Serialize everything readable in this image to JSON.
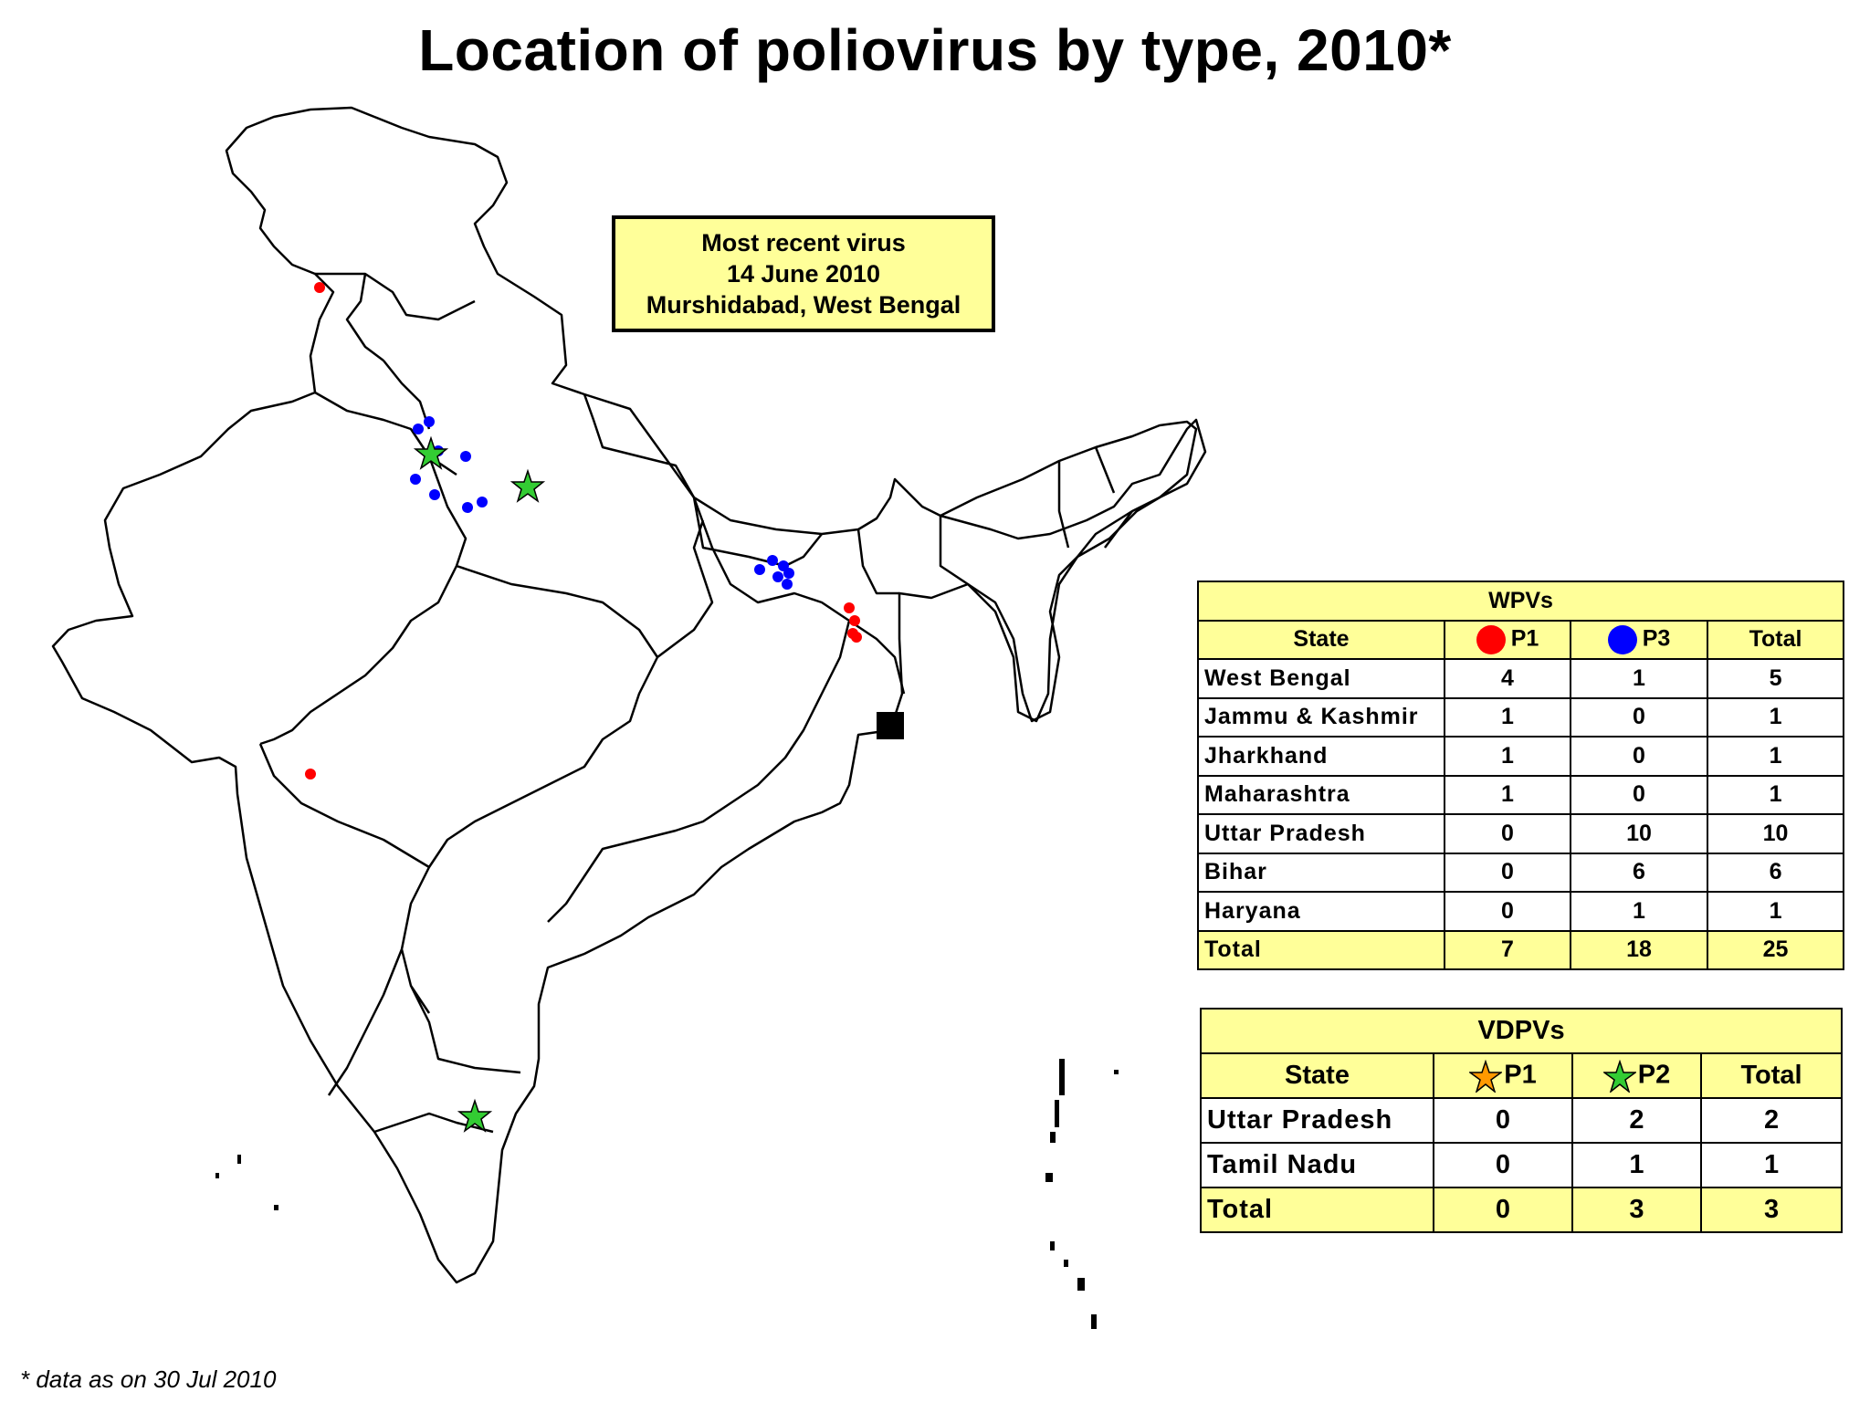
{
  "title": "Location of poliovirus by type, 2010*",
  "recent_virus": {
    "line1": "Most recent virus",
    "line2": "14 June 2010",
    "line3": "Murshidabad, West Bengal"
  },
  "wpv_table": {
    "title": "WPVs",
    "col_state": "State",
    "col_p1": "P1",
    "col_p3": "P3",
    "col_total": "Total",
    "p1_marker_color": "#ff0000",
    "p3_marker_color": "#0000ff",
    "rows": [
      {
        "state": "West Bengal",
        "p1": "4",
        "p3": "1",
        "total": "5"
      },
      {
        "state": "Jammu & Kashmir",
        "p1": "1",
        "p3": "0",
        "total": "1"
      },
      {
        "state": "Jharkhand",
        "p1": "1",
        "p3": "0",
        "total": "1"
      },
      {
        "state": "Maharashtra",
        "p1": "1",
        "p3": "0",
        "total": "1"
      },
      {
        "state": "Uttar Pradesh",
        "p1": "0",
        "p3": "10",
        "total": "10"
      },
      {
        "state": "Bihar",
        "p1": "0",
        "p3": "6",
        "total": "6"
      },
      {
        "state": "Haryana",
        "p1": "0",
        "p3": "1",
        "total": "1"
      }
    ],
    "total_row": {
      "state": "Total",
      "p1": "7",
      "p3": "18",
      "total": "25"
    }
  },
  "vdpv_table": {
    "title": "VDPVs",
    "col_state": "State",
    "col_p1": "P1",
    "col_p2": "P2",
    "col_total": "Total",
    "p1_marker_color": "#ff9900",
    "p2_marker_color": "#33cc33",
    "rows": [
      {
        "state": "Uttar Pradesh",
        "p1": "0",
        "p2": "2",
        "total": "2"
      },
      {
        "state": "Tamil Nadu",
        "p1": "0",
        "p2": "1",
        "total": "1"
      }
    ],
    "total_row": {
      "state": "Total",
      "p1": "0",
      "p2": "3",
      "total": "3"
    }
  },
  "footnote": "* data as on 30 Jul 2010",
  "colors": {
    "table_fill": "#ffff99",
    "wpv_p1": "#ff0000",
    "wpv_p3": "#0000ff",
    "vdpv_p2": "#33cc33"
  }
}
